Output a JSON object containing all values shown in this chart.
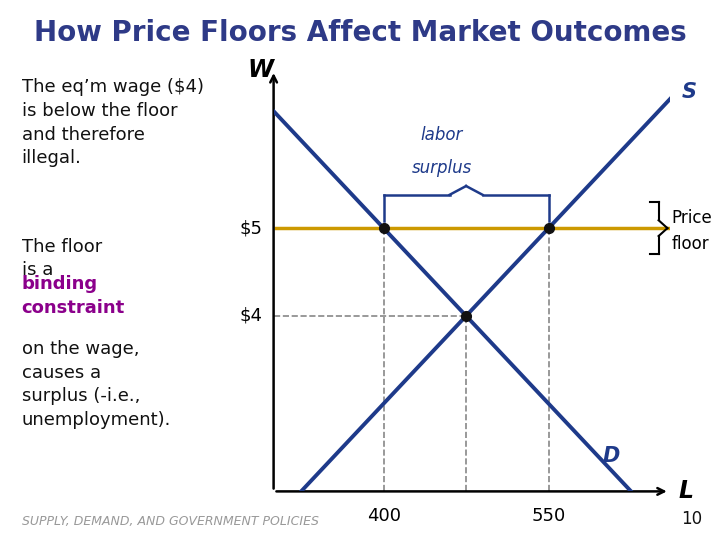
{
  "title": "How Price Floors Affect Market Outcomes",
  "title_color": "#2E3A87",
  "title_fontsize": 20,
  "bg_color": "#FFFFFF",
  "footer": "SUPPLY, DEMAND, AND GOVERNMENT POLICIES",
  "footer_color": "#999999",
  "page_number": "10",
  "xlabel": "L",
  "ylabel": "W",
  "floor_wage": 5,
  "eq_wage": 4,
  "q_demand_at_floor": 400,
  "q_supply_at_floor": 550,
  "q_eq": 475,
  "x_min": 300,
  "x_max": 660,
  "y_min": 2.0,
  "y_max": 6.8,
  "supply_color": "#1E3A8A",
  "demand_color": "#1E3A8A",
  "floor_color": "#CC9900",
  "dashed_color": "#888888",
  "dot_color": "#111111",
  "labor_surplus_color": "#1E3A8A",
  "text_color": "#111111",
  "binding_color": "#8B008B"
}
